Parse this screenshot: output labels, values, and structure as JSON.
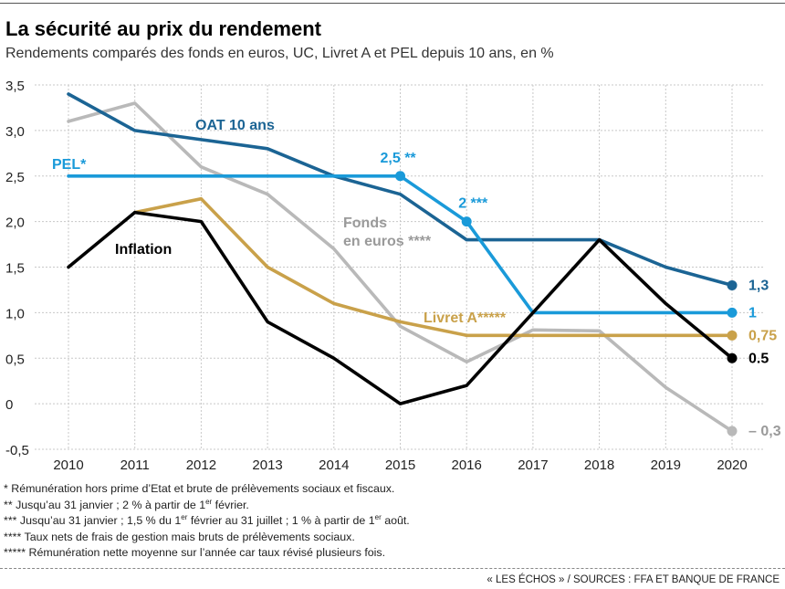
{
  "title": "La sécurité au prix du rendement",
  "subtitle": "Rendements comparés des fonds en euros, UC, Livret A et PEL depuis 10 ans, en %",
  "chart_data": {
    "type": "line",
    "x": [
      2010,
      2011,
      2012,
      2013,
      2014,
      2015,
      2016,
      2017,
      2018,
      2019,
      2020
    ],
    "ylim": [
      -0.5,
      3.5
    ],
    "yticks": [
      -0.5,
      0,
      0.5,
      1.0,
      1.5,
      2.0,
      2.5,
      3.0,
      3.5
    ],
    "ytick_labels": [
      "-0,5",
      "0",
      "0,5",
      "1,0",
      "1,5",
      "2,0",
      "2,5",
      "3,0",
      "3,5"
    ],
    "grid": true,
    "legend": "inline labels",
    "series": [
      {
        "name": "Fonds en euros ****",
        "color": "#b9b9b9",
        "x": [
          2010,
          2011,
          2012,
          2013,
          2014,
          2015,
          2016,
          2017,
          2018,
          2019,
          2020
        ],
        "values": [
          3.1,
          3.3,
          2.6,
          2.3,
          1.7,
          0.85,
          0.46,
          0.81,
          0.8,
          0.18,
          -0.3
        ],
        "end_label": "– 0,3",
        "label_lines": [
          "Fonds",
          "en euros ****"
        ]
      },
      {
        "name": "Livret A*****",
        "color": "#c9a14a",
        "x": [
          2011,
          2012,
          2013,
          2014,
          2015,
          2016,
          2017,
          2018,
          2019,
          2020
        ],
        "values": [
          2.1,
          2.25,
          1.5,
          1.1,
          0.9,
          0.75,
          0.75,
          0.75,
          0.75,
          0.75
        ],
        "end_label": "0,75"
      },
      {
        "name": "OAT 10 ans",
        "color": "#1b6494",
        "x": [
          2010,
          2011,
          2012,
          2013,
          2014,
          2015,
          2016,
          2017,
          2018,
          2019,
          2020
        ],
        "values": [
          3.4,
          3.0,
          2.9,
          2.8,
          2.5,
          2.3,
          1.8,
          1.8,
          1.8,
          1.5,
          1.3
        ],
        "end_label": "1,3"
      },
      {
        "name": "PEL*",
        "color": "#1a9ad9",
        "x": [
          2010,
          2015,
          2016,
          2017,
          2020
        ],
        "values": [
          2.5,
          2.5,
          2.0,
          1.0,
          1.0
        ],
        "end_label": "1",
        "annotations": [
          {
            "x": 2015,
            "y": 2.5,
            "text": "2,5 **"
          },
          {
            "x": 2016,
            "y": 2.0,
            "text": "2 ***"
          }
        ]
      },
      {
        "name": "Inflation",
        "color": "#000000",
        "x": [
          2010,
          2011,
          2012,
          2013,
          2014,
          2015,
          2016,
          2017,
          2018,
          2019,
          2020
        ],
        "values": [
          1.5,
          2.1,
          2.0,
          0.9,
          0.5,
          0.0,
          0.2,
          1.0,
          1.8,
          1.1,
          0.5
        ],
        "end_label": "0.5"
      }
    ]
  },
  "footnotes": {
    "note1": "* Rémunération hors prime d’Etat et brute de prélèvements sociaux et fiscaux.",
    "note2_a": "** Jusqu’au 31 janvier ; 2 % à partir de 1",
    "note2_b": " février.",
    "note3_a": "*** Jusqu’au 31 janvier ; 1,5 % du 1",
    "note3_b": " février au 31 juillet ; 1 % à partir de 1",
    "note3_c": " août.",
    "sup_er": "er",
    "note4": "**** Taux nets de frais de gestion mais bruts de prélèvements sociaux.",
    "note5": "***** Rémunération nette moyenne sur l’année car taux révisé plusieurs fois."
  },
  "source": "« LES ÉCHOS » / SOURCES : FFA ET BANQUE DE FRANCE"
}
